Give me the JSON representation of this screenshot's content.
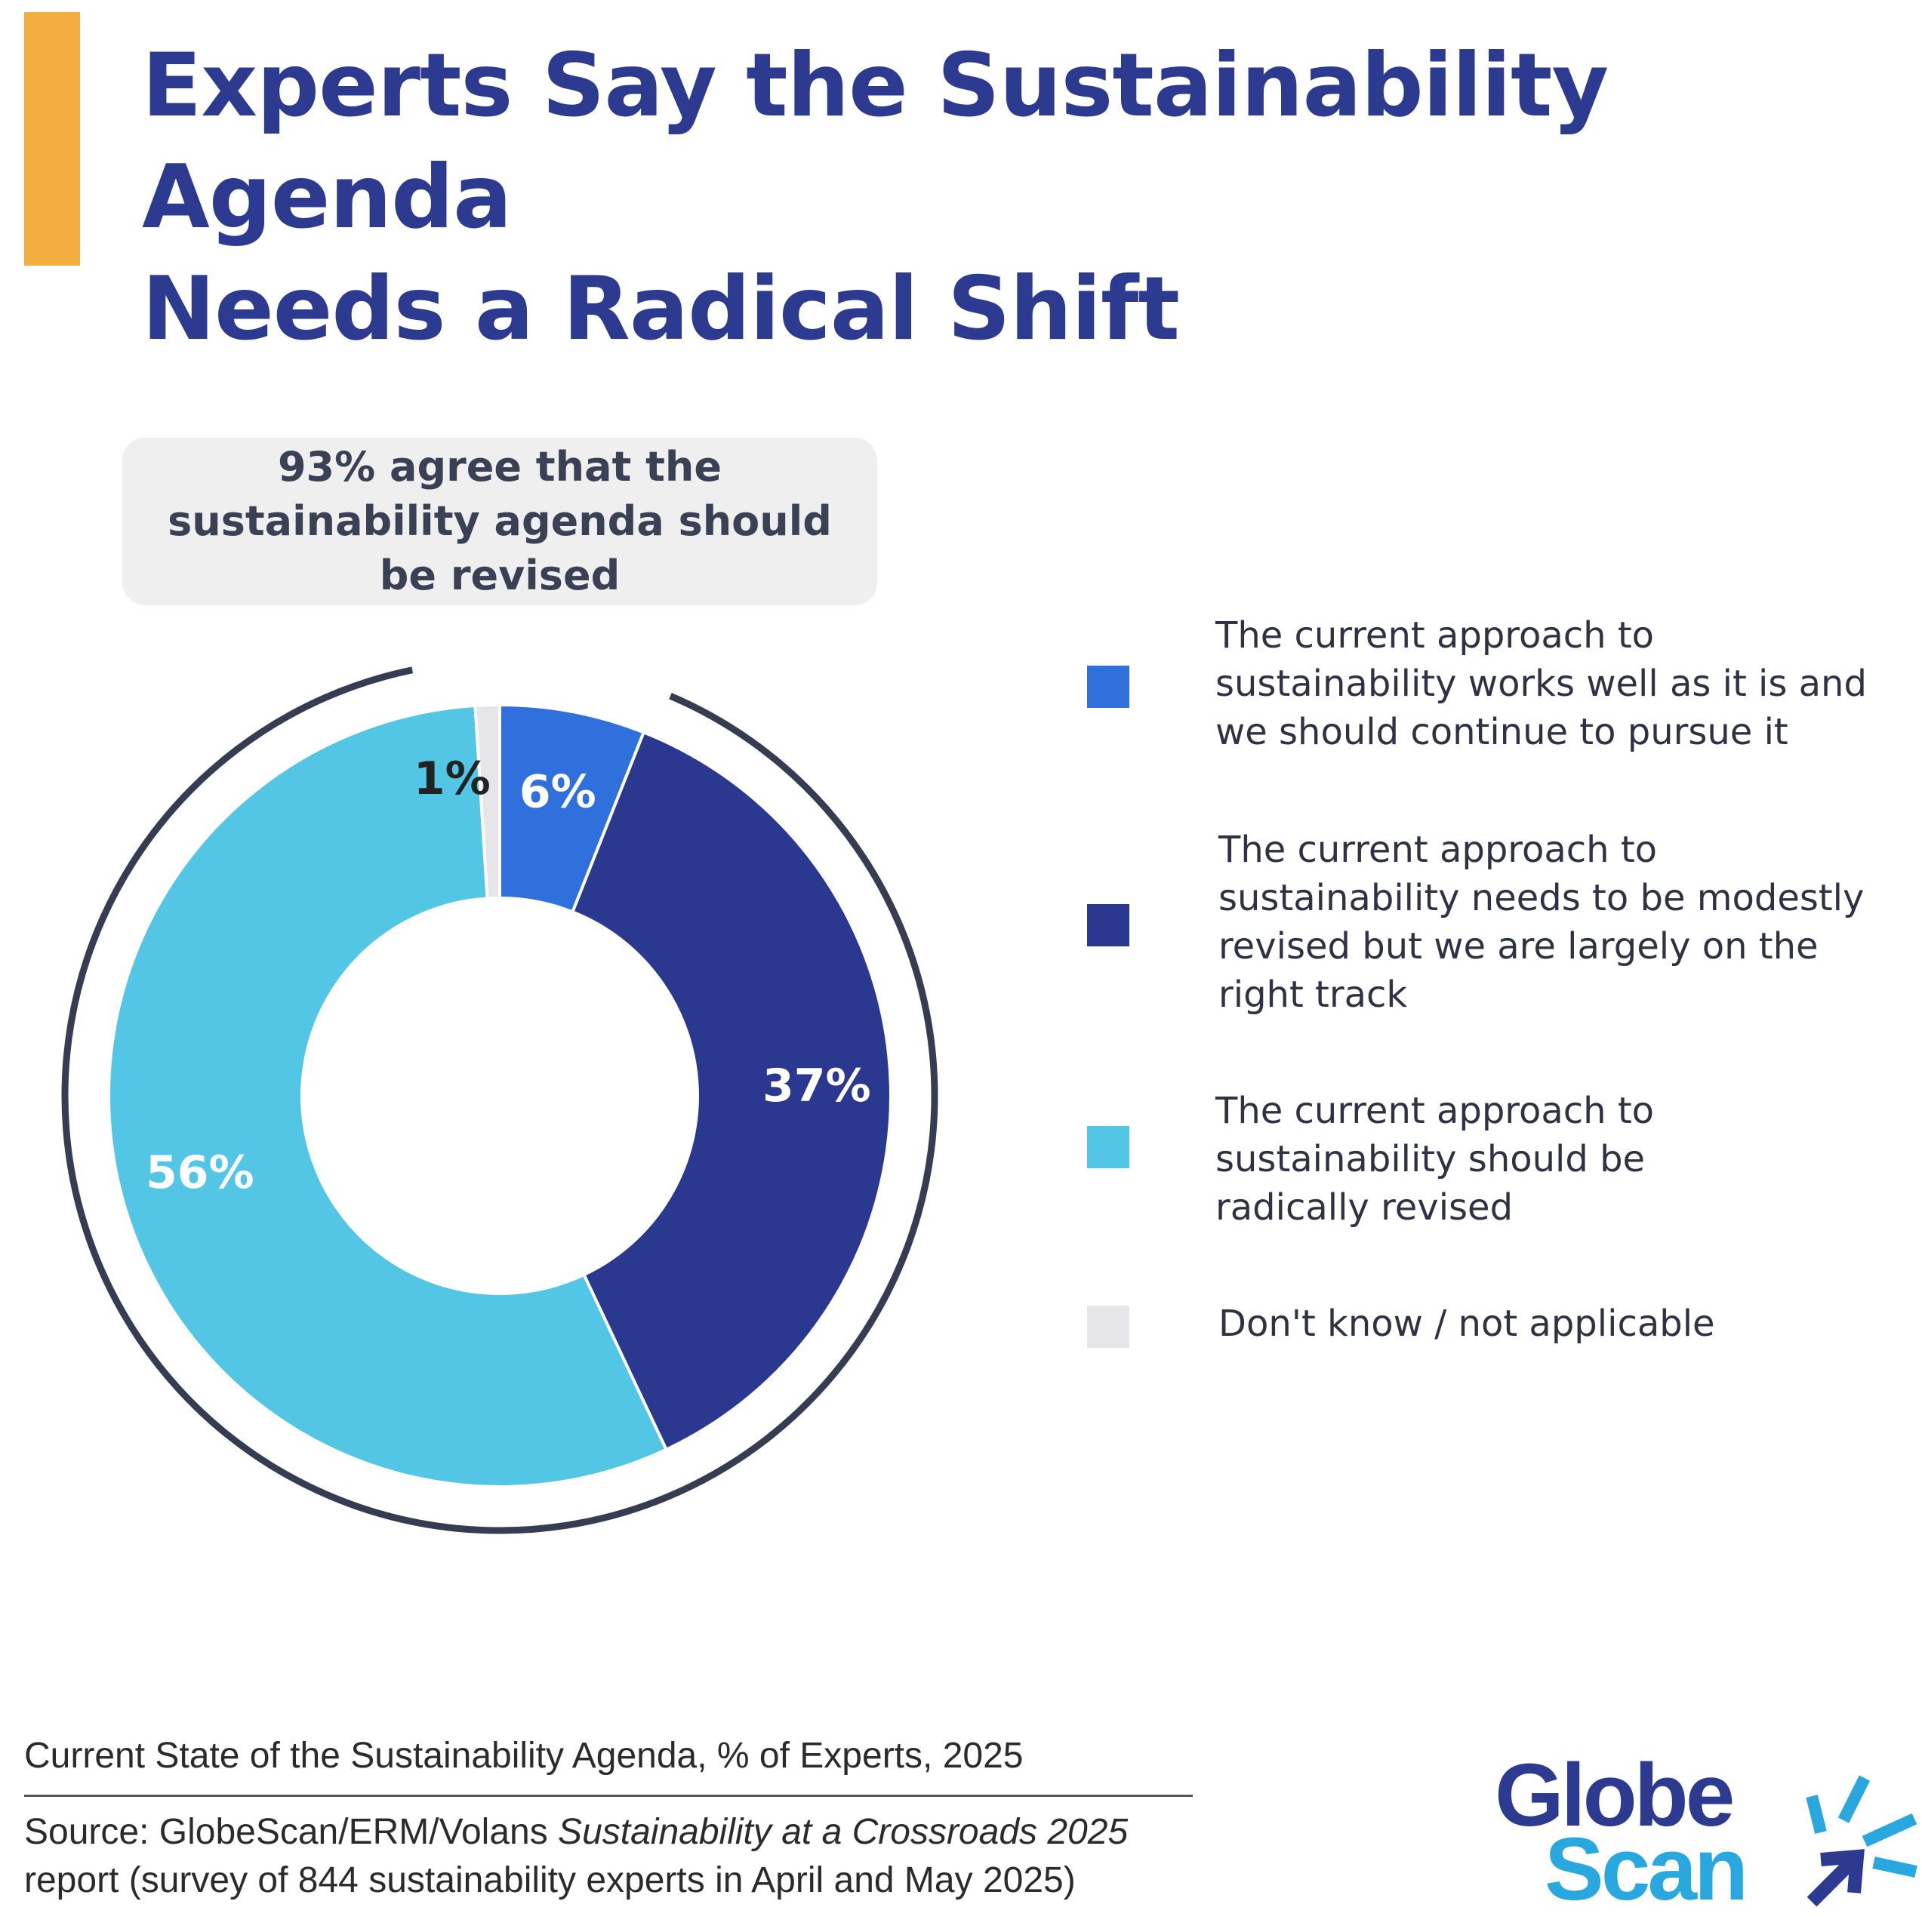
{
  "header": {
    "title_line1": "Experts Say the Sustainability Agenda",
    "title_line2": "Needs a Radical Shift"
  },
  "callout": {
    "text": "93% agree that the sustainability agenda should be revised"
  },
  "colors": {
    "accent": "#F2AE40",
    "title": "#2C3A8F",
    "ring": "#363D52"
  },
  "chart_data": {
    "type": "pie",
    "donut": true,
    "slices": [
      {
        "label": "The current approach to sustainability works well as it is and we should continue to pursue it",
        "value": 6,
        "data_label": "6%",
        "color": "#2F70DD",
        "label_color": "#FFFFFF"
      },
      {
        "label": "The current approach to sustainability needs to be modestly revised but we are largely on the right track",
        "value": 37,
        "data_label": "37%",
        "color": "#2B388F",
        "label_color": "#FFFFFF"
      },
      {
        "label": "The current approach to sustainability should be radically revised",
        "value": 56,
        "data_label": "56%",
        "color": "#52C6E4",
        "label_color": "#FFFFFF"
      },
      {
        "label": "Don't know / not applicable",
        "value": 1,
        "data_label": "1%",
        "color": "#E6E6E8",
        "label_color": "#222222"
      }
    ],
    "highlight_ring": {
      "covers_values_summing_to": 93
    }
  },
  "legend": {
    "items": [
      {
        "lines": [
          "The current approach to",
          "sustainability works well as it is and",
          "we should continue to pursue it"
        ],
        "color": "#2F70DD"
      },
      {
        "lines": [
          "The current approach to",
          "sustainability needs to be modestly",
          "revised but we are largely on the",
          "right track"
        ],
        "color": "#2B388F"
      },
      {
        "lines": [
          "The current approach to",
          "sustainability should be",
          "radically revised"
        ],
        "color": "#52C6E4"
      },
      {
        "lines": [
          "Don't know / not applicable"
        ],
        "color": "#E6E6E8"
      }
    ]
  },
  "footer": {
    "subtitle": "Current State of the Sustainability Agenda, % of Experts, 2025",
    "source_prefix": "Source: GlobeScan/ERM/Volans ",
    "source_italic": "Sustainability at a Crossroads 2025",
    "source_suffix": "report (survey of 844 sustainability experts in April and May 2025)"
  },
  "logo": {
    "line1": "Globe",
    "line2": "Scan"
  }
}
